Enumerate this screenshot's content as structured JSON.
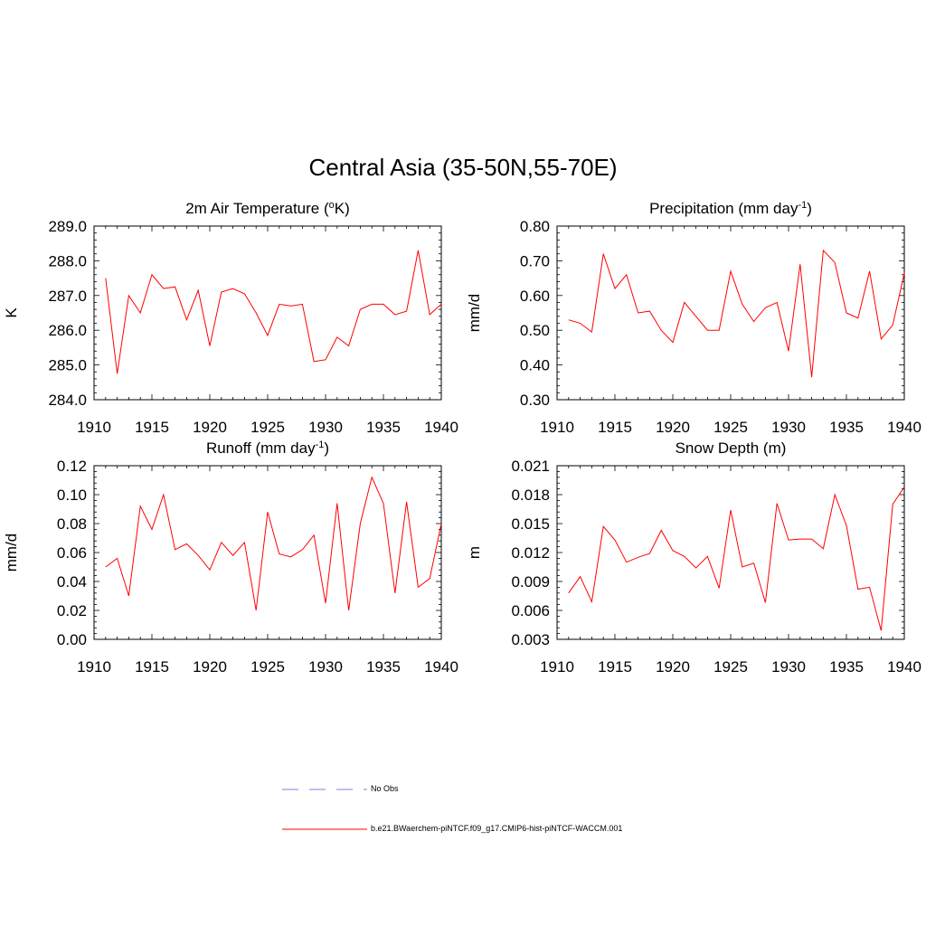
{
  "figure": {
    "title": "Central Asia (35-50N,55-70E)"
  },
  "legend": {
    "items": [
      {
        "label": "No Obs",
        "color": "#9999dd",
        "style": "dashed"
      },
      {
        "label": "b.e21.BWaerchem-piNTCF.f09_g17.CMIP6-hist-piNTCF-WACCM.001",
        "color": "#ff0000",
        "style": "solid"
      }
    ]
  },
  "chart_data": [
    {
      "type": "line",
      "title": "2m Air Temperature (",
      "title_sup": "o",
      "title_suffix": "K)",
      "ylabel": "K",
      "xlim": [
        1910,
        1940
      ],
      "ylim": [
        284.0,
        289.0
      ],
      "xticks": [
        "1910",
        "1915",
        "1920",
        "1925",
        "1930",
        "1935",
        "1940"
      ],
      "yticks": [
        "284.0",
        "285.0",
        "286.0",
        "287.0",
        "288.0",
        "289.0"
      ],
      "color": "#ff0000",
      "x": [
        1911,
        1912,
        1913,
        1914,
        1915,
        1916,
        1917,
        1918,
        1919,
        1920,
        1921,
        1922,
        1923,
        1924,
        1925,
        1926,
        1927,
        1928,
        1929,
        1930,
        1931,
        1932,
        1933,
        1934,
        1935,
        1936,
        1937,
        1938,
        1939,
        1940
      ],
      "values": [
        287.5,
        284.75,
        287.0,
        286.5,
        287.6,
        287.2,
        287.25,
        286.3,
        287.15,
        285.55,
        287.1,
        287.2,
        287.05,
        286.5,
        285.85,
        286.75,
        286.7,
        286.75,
        285.1,
        285.15,
        285.8,
        285.55,
        286.6,
        286.75,
        286.75,
        286.45,
        286.55,
        288.3,
        286.45,
        286.75
      ]
    },
    {
      "type": "line",
      "title": "Precipitation (mm day",
      "title_sup": "-1",
      "title_suffix": ")",
      "ylabel": "mm/d",
      "xlim": [
        1910,
        1940
      ],
      "ylim": [
        0.3,
        0.8
      ],
      "xticks": [
        "1910",
        "1915",
        "1920",
        "1925",
        "1930",
        "1935",
        "1940"
      ],
      "yticks": [
        "0.30",
        "0.40",
        "0.50",
        "0.60",
        "0.70",
        "0.80"
      ],
      "color": "#ff0000",
      "x": [
        1911,
        1912,
        1913,
        1914,
        1915,
        1916,
        1917,
        1918,
        1919,
        1920,
        1921,
        1922,
        1923,
        1924,
        1925,
        1926,
        1927,
        1928,
        1929,
        1930,
        1931,
        1932,
        1933,
        1934,
        1935,
        1936,
        1937,
        1938,
        1939,
        1940
      ],
      "values": [
        0.53,
        0.52,
        0.495,
        0.72,
        0.62,
        0.66,
        0.55,
        0.555,
        0.5,
        0.465,
        0.58,
        0.54,
        0.5,
        0.5,
        0.67,
        0.575,
        0.525,
        0.565,
        0.58,
        0.44,
        0.69,
        0.365,
        0.73,
        0.695,
        0.55,
        0.535,
        0.67,
        0.475,
        0.515,
        0.665
      ]
    },
    {
      "type": "line",
      "title": "Runoff (mm day",
      "title_sup": "-1",
      "title_suffix": ")",
      "ylabel": "mm/d",
      "xlim": [
        1910,
        1940
      ],
      "ylim": [
        0.0,
        0.12
      ],
      "xticks": [
        "1910",
        "1915",
        "1920",
        "1925",
        "1930",
        "1935",
        "1940"
      ],
      "yticks": [
        "0.00",
        "0.02",
        "0.04",
        "0.06",
        "0.08",
        "0.10",
        "0.12"
      ],
      "color": "#ff0000",
      "x": [
        1911,
        1912,
        1913,
        1914,
        1915,
        1916,
        1917,
        1918,
        1919,
        1920,
        1921,
        1922,
        1923,
        1924,
        1925,
        1926,
        1927,
        1928,
        1929,
        1930,
        1931,
        1932,
        1933,
        1934,
        1935,
        1936,
        1937,
        1938,
        1939,
        1940
      ],
      "values": [
        0.05,
        0.056,
        0.03,
        0.092,
        0.076,
        0.1,
        0.062,
        0.066,
        0.058,
        0.048,
        0.067,
        0.058,
        0.067,
        0.02,
        0.088,
        0.059,
        0.057,
        0.062,
        0.072,
        0.025,
        0.094,
        0.02,
        0.08,
        0.112,
        0.094,
        0.032,
        0.095,
        0.036,
        0.042,
        0.08
      ]
    },
    {
      "type": "line",
      "title": "Snow Depth (m)",
      "title_sup": "",
      "title_suffix": "",
      "ylabel": "m",
      "xlim": [
        1910,
        1940
      ],
      "ylim": [
        0.003,
        0.021
      ],
      "xticks": [
        "1910",
        "1915",
        "1920",
        "1925",
        "1930",
        "1935",
        "1940"
      ],
      "yticks": [
        "0.003",
        "0.006",
        "0.009",
        "0.012",
        "0.015",
        "0.018",
        "0.021"
      ],
      "color": "#ff0000",
      "x": [
        1911,
        1912,
        1913,
        1914,
        1915,
        1916,
        1917,
        1918,
        1919,
        1920,
        1921,
        1922,
        1923,
        1924,
        1925,
        1926,
        1927,
        1928,
        1929,
        1930,
        1931,
        1932,
        1933,
        1934,
        1935,
        1936,
        1937,
        1938,
        1939,
        1940
      ],
      "values": [
        0.0078,
        0.0095,
        0.0069,
        0.0147,
        0.0133,
        0.011,
        0.0115,
        0.0119,
        0.0143,
        0.0122,
        0.0116,
        0.0104,
        0.0116,
        0.0083,
        0.0164,
        0.0105,
        0.0109,
        0.0068,
        0.0171,
        0.0133,
        0.0134,
        0.0134,
        0.0124,
        0.018,
        0.0148,
        0.0082,
        0.0084,
        0.0039,
        0.017,
        0.0188
      ]
    }
  ]
}
